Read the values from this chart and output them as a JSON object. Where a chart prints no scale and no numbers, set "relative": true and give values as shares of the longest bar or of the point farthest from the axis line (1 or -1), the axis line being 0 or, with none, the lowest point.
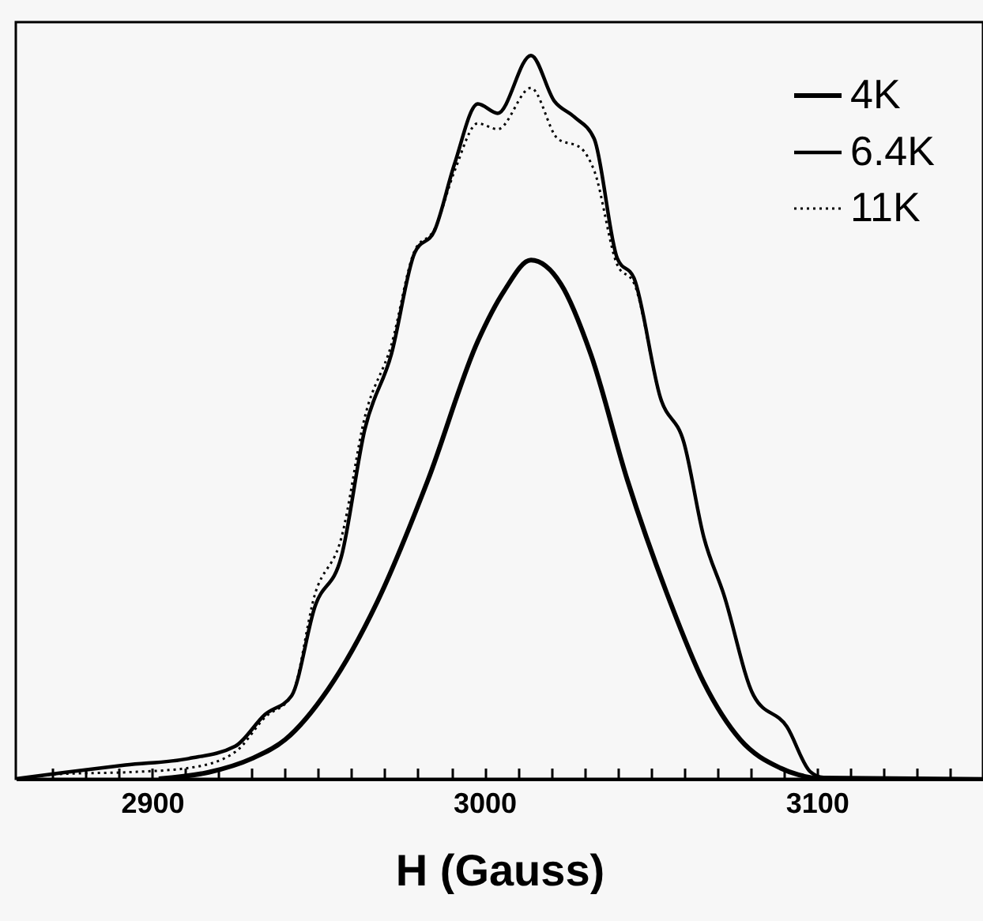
{
  "chart_data": {
    "type": "line",
    "relative": true,
    "xlabel": "H  (Gauss)",
    "xlim": [
      2859,
      3150
    ],
    "xticks": [
      {
        "value": 2870,
        "label": null
      },
      {
        "value": 2880,
        "label": null
      },
      {
        "value": 2890,
        "label": null
      },
      2900,
      {
        "value": 2910,
        "label": null
      },
      {
        "value": 2920,
        "label": null
      },
      {
        "value": 2930,
        "label": null
      },
      {
        "value": 2940,
        "label": null
      },
      {
        "value": 2950,
        "label": null
      },
      {
        "value": 2960,
        "label": null
      },
      {
        "value": 2970,
        "label": null
      },
      {
        "value": 2980,
        "label": null
      },
      {
        "value": 2990,
        "label": null
      },
      3000,
      {
        "value": 3010,
        "label": null
      },
      {
        "value": 3020,
        "label": null
      },
      {
        "value": 3030,
        "label": null
      },
      {
        "value": 3040,
        "label": null
      },
      {
        "value": 3050,
        "label": null
      },
      {
        "value": 3060,
        "label": null
      },
      {
        "value": 3070,
        "label": null
      },
      {
        "value": 3080,
        "label": null
      },
      {
        "value": 3090,
        "label": null
      },
      3100,
      {
        "value": 3110,
        "label": null
      },
      {
        "value": 3120,
        "label": null
      },
      {
        "value": 3130,
        "label": null
      },
      {
        "value": 3140,
        "label": null
      }
    ],
    "legend": "top right",
    "marker": "none",
    "grid": false,
    "series": [
      {
        "name": "4K",
        "color": "#000000",
        "line_style": "solid",
        "x": [
          2902,
          2917,
          2930,
          2940,
          2953,
          2968,
          2983,
          2998,
          3006,
          3014,
          3023,
          3032,
          3043,
          3055,
          3066,
          3077,
          3089,
          3100
        ],
        "values": [
          0,
          0.009,
          0.028,
          0.054,
          0.124,
          0.247,
          0.413,
          0.605,
          0.675,
          0.717,
          0.684,
          0.587,
          0.413,
          0.255,
          0.133,
          0.054,
          0.015,
          0
        ]
      },
      {
        "name": "6.4K",
        "color": "#000000",
        "line_style": "solid",
        "x": [
          2859,
          2874,
          2892,
          2911,
          2925,
          2934,
          2942,
          2949,
          2957,
          2964,
          2972,
          2979,
          2985,
          2991,
          2998,
          3004,
          3014,
          3021,
          3027,
          3033,
          3040,
          3045,
          3053,
          3060,
          3066,
          3072,
          3081,
          3091,
          3098,
          3102,
          3150
        ],
        "values": [
          0,
          0.009,
          0.019,
          0.028,
          0.045,
          0.089,
          0.115,
          0.238,
          0.308,
          0.483,
          0.587,
          0.727,
          0.758,
          0.85,
          0.933,
          0.92,
          1,
          0.937,
          0.915,
          0.885,
          0.719,
          0.692,
          0.526,
          0.465,
          0.334,
          0.255,
          0.115,
          0.072,
          0.01,
          0.002,
          0
        ]
      },
      {
        "name": "11K",
        "color": "#000000",
        "line_style": "dotted",
        "x": [
          2859,
          2874,
          2892,
          2911,
          2925,
          2934,
          2942,
          2949,
          2957,
          2964,
          2972,
          2979,
          2985,
          2991,
          2998,
          3004,
          3014,
          3022,
          3029,
          3033,
          3040,
          3045,
          3053,
          3060,
          3066,
          3072,
          3081,
          3091,
          3098,
          3102,
          3150
        ],
        "values": [
          0,
          0.007,
          0.009,
          0.015,
          0.037,
          0.085,
          0.115,
          0.255,
          0.334,
          0.5,
          0.6,
          0.73,
          0.76,
          0.84,
          0.906,
          0.898,
          0.955,
          0.885,
          0.872,
          0.841,
          0.71,
          0.685,
          0.526,
          0.465,
          0.334,
          0.255,
          0.115,
          0.072,
          0.01,
          0.002,
          0
        ]
      }
    ]
  }
}
